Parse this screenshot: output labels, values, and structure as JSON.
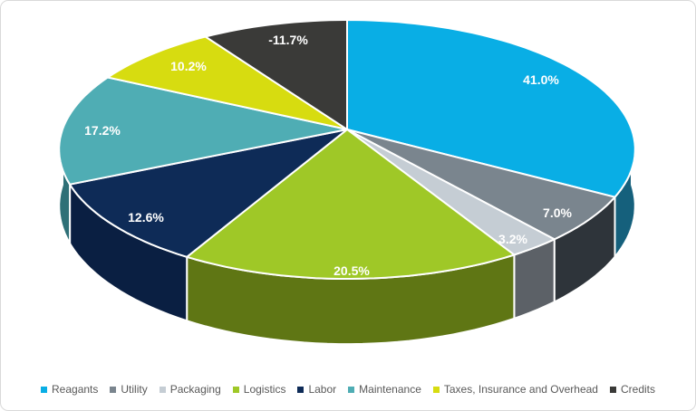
{
  "chart_data": {
    "type": "pie",
    "projection": "3d",
    "title": "",
    "start_angle_deg": 0,
    "direction": "clockwise",
    "slice_label_color": "#FFFFFF",
    "background": "#FFFFFF",
    "border_color": "#D9D9D9",
    "legend": {
      "position": "bottom",
      "text_color": "#595959"
    },
    "slices": [
      {
        "label": "Reagants",
        "value": 41.0,
        "label_text": "41.0%",
        "color": "#09AEE5",
        "side_color": "#15607C"
      },
      {
        "label": "Utility",
        "value": 7.0,
        "label_text": "7.0%",
        "color": "#7A858E",
        "side_color": "#2E343A"
      },
      {
        "label": "Packaging",
        "value": 3.2,
        "label_text": "3.2%",
        "color": "#C5CDD4",
        "side_color": "#5C6167"
      },
      {
        "label": "Logistics",
        "value": 20.5,
        "label_text": "20.5%",
        "color": "#9FC827",
        "side_color": "#5F7614"
      },
      {
        "label": "Labor",
        "value": 12.6,
        "label_text": "12.6%",
        "color": "#0E2B57",
        "side_color": "#0A1F42"
      },
      {
        "label": "Maintenance",
        "value": 17.2,
        "label_text": "17.2%",
        "color": "#4FADB4",
        "side_color": "#2E7077"
      },
      {
        "label": "Taxes, Insurance and Overhead",
        "value": 10.2,
        "label_text": "10.2%",
        "color": "#D7DC10",
        "side_color": "#8A8E0C"
      },
      {
        "label": "Credits",
        "value": -11.7,
        "label_text": "-11.7%",
        "color": "#3A3A38",
        "side_color": "#222220"
      }
    ]
  }
}
